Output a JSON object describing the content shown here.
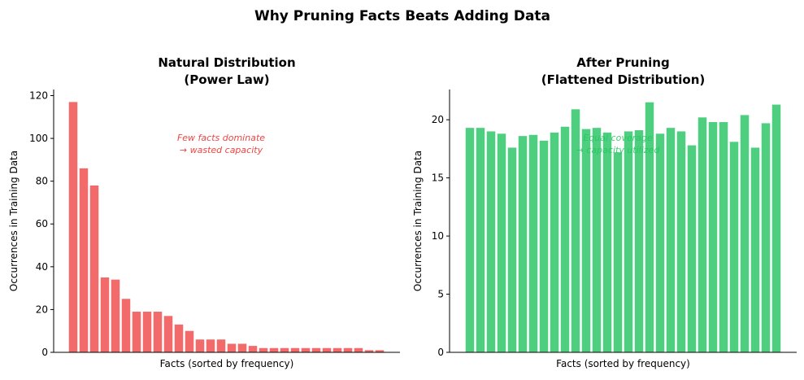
{
  "figure_title": "Why Pruning Facts Beats Adding Data",
  "chart_data": [
    {
      "type": "bar",
      "title_lines": [
        "Natural Distribution",
        "(Power Law)"
      ],
      "xlabel": "Facts (sorted by frequency)",
      "ylabel": "Occurrences in Training Data",
      "ylim": [
        0,
        122.85
      ],
      "yticks": [
        0,
        20,
        40,
        60,
        80,
        100,
        120
      ],
      "xticks": [],
      "grid": false,
      "color": "#f26a6a",
      "annotation": {
        "lines": [
          "Few facts dominate",
          "→ wasted capacity"
        ],
        "color": "#ef4444"
      },
      "values": [
        117,
        86,
        78,
        35,
        34,
        25,
        19,
        19,
        19,
        17,
        13,
        10,
        6,
        6,
        6,
        4,
        4,
        3,
        2,
        2,
        2,
        2,
        2,
        2,
        2,
        2,
        2,
        2,
        1,
        1
      ]
    },
    {
      "type": "bar",
      "title_lines": [
        "After Pruning",
        "(Flattened Distribution)"
      ],
      "xlabel": "Facts (sorted by frequency)",
      "ylabel": "Occurrences in Training Data",
      "ylim": [
        0,
        22.6
      ],
      "yticks": [
        0,
        5,
        10,
        15,
        20
      ],
      "xticks": [],
      "grid": false,
      "color": "#4ecf80",
      "annotation": {
        "lines": [
          "Equal coverage",
          "→ capacity utilized"
        ],
        "color": "#22c55e"
      },
      "values": [
        19.3,
        19.3,
        19.0,
        18.8,
        17.6,
        18.6,
        18.7,
        18.2,
        18.9,
        19.4,
        20.9,
        19.2,
        19.3,
        18.9,
        17.2,
        19.0,
        19.1,
        21.5,
        18.8,
        19.3,
        19.0,
        17.8,
        20.2,
        19.8,
        19.8,
        18.1,
        20.4,
        17.6,
        19.7,
        21.3
      ]
    }
  ]
}
